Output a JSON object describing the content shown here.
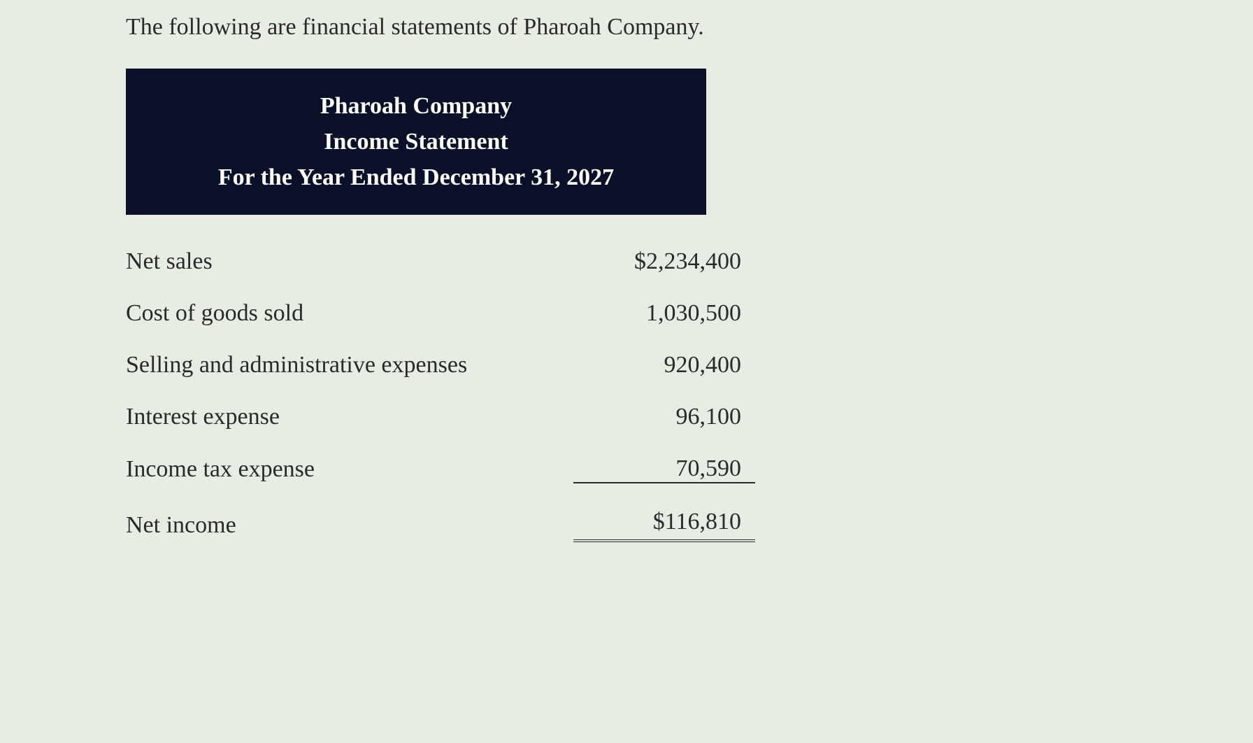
{
  "intro": "The following are financial statements of Pharoah Company.",
  "header": {
    "company": "Pharoah Company",
    "title": "Income Statement",
    "period": "For the Year Ended December 31, 2027"
  },
  "rows": {
    "net_sales": {
      "label": "Net sales",
      "value": "$2,234,400"
    },
    "cogs": {
      "label": "Cost of goods sold",
      "value": "1,030,500"
    },
    "sga": {
      "label": "Selling and administrative expenses",
      "value": "920,400"
    },
    "interest": {
      "label": "Interest expense",
      "value": "96,100"
    },
    "tax": {
      "label": "Income tax expense",
      "value": "70,590"
    },
    "net_income": {
      "label": "Net income",
      "value": "$116,810"
    }
  },
  "styling": {
    "header_bg": "#0a1028",
    "header_text": "#ffffff",
    "body_bg": "#e8ede4",
    "text_color": "#2a2a2a",
    "font_family": "serif",
    "intro_fontsize": 34,
    "header_fontsize": 34,
    "row_fontsize": 34
  }
}
